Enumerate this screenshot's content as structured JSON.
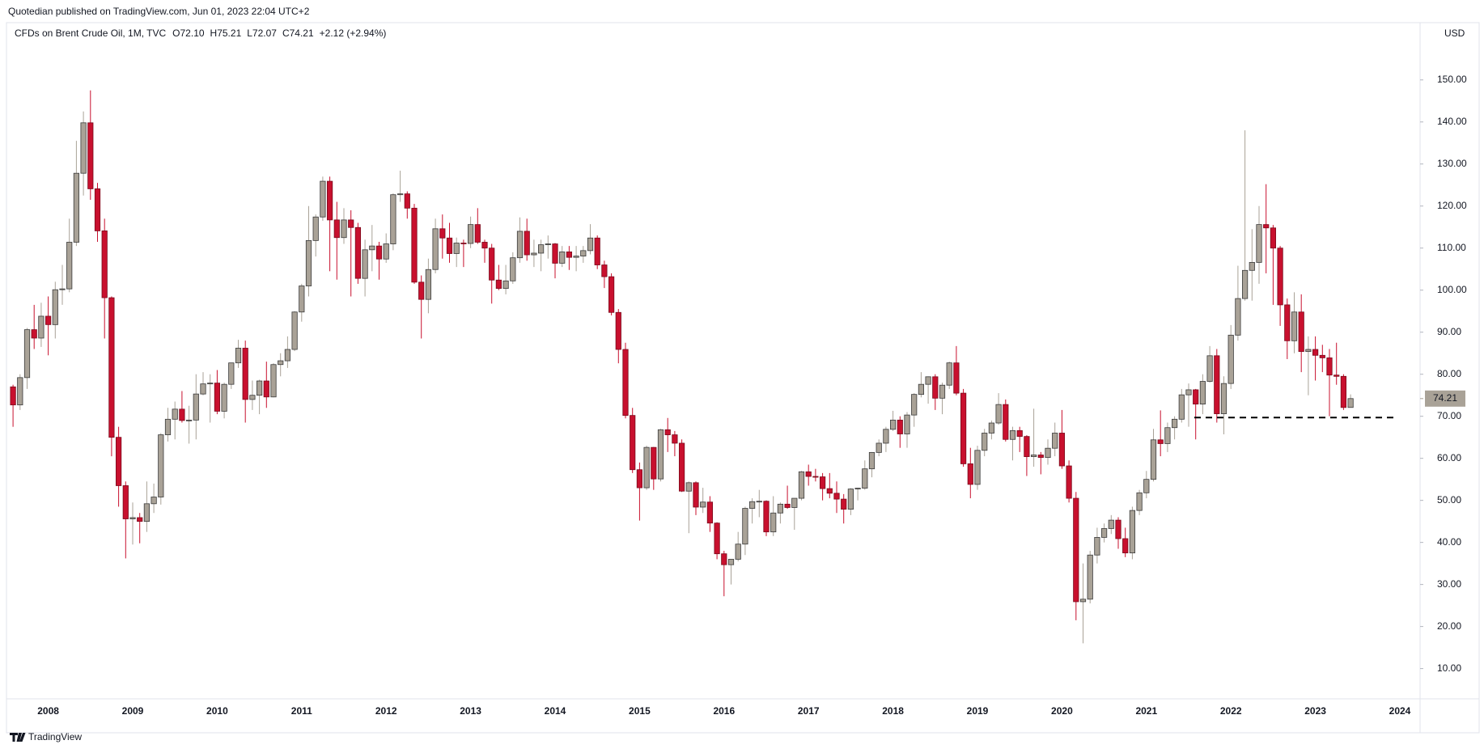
{
  "page": {
    "published": "Quotedian published on TradingView.com, Jun 01, 2023 22:04 UTC+2",
    "brand": "TradingView"
  },
  "chart_data": {
    "type": "candlestick",
    "title": "CFDs on Brent Crude Oil, 1M, TVC",
    "header_open": "O72.10",
    "header_high": "H75.21",
    "header_low": "L72.07",
    "header_close": "C74.21",
    "header_change": "+2.12 (+2.94%)",
    "currency": "USD",
    "up_color": "#a9a297",
    "down_color": "#c8102e",
    "last_price": 74.21,
    "level": 69.7,
    "ylim": [
      3,
      159
    ],
    "yticks": [
      {
        "value": 10,
        "label": "10.00"
      },
      {
        "value": 20,
        "label": "20.00"
      },
      {
        "value": 30,
        "label": "30.00"
      },
      {
        "value": 40,
        "label": "40.00"
      },
      {
        "value": 50,
        "label": "50.00"
      },
      {
        "value": 60,
        "label": "60.00"
      },
      {
        "value": 70,
        "label": "70.00"
      },
      {
        "value": 80,
        "label": "80.00"
      },
      {
        "value": 90,
        "label": "90.00"
      },
      {
        "value": 100,
        "label": "100.00"
      },
      {
        "value": 110,
        "label": "110.00"
      },
      {
        "value": 120,
        "label": "120.00"
      },
      {
        "value": 130,
        "label": "130.00"
      },
      {
        "value": 140,
        "label": "140.00"
      },
      {
        "value": 150,
        "label": "150.00"
      }
    ],
    "categories": [
      null,
      null,
      null,
      null,
      null,
      "2008",
      null,
      null,
      null,
      null,
      null,
      null,
      null,
      null,
      null,
      null,
      null,
      "2009",
      null,
      null,
      null,
      null,
      null,
      null,
      null,
      null,
      null,
      null,
      null,
      "2010",
      null,
      null,
      null,
      null,
      null,
      null,
      null,
      null,
      null,
      null,
      null,
      "2011",
      null,
      null,
      null,
      null,
      null,
      null,
      null,
      null,
      null,
      null,
      null,
      "2012",
      null,
      null,
      null,
      null,
      null,
      null,
      null,
      null,
      null,
      null,
      null,
      "2013",
      null,
      null,
      null,
      null,
      null,
      null,
      null,
      null,
      null,
      null,
      null,
      "2014",
      null,
      null,
      null,
      null,
      null,
      null,
      null,
      null,
      null,
      null,
      null,
      "2015",
      null,
      null,
      null,
      null,
      null,
      null,
      null,
      null,
      null,
      null,
      null,
      "2016",
      null,
      null,
      null,
      null,
      null,
      null,
      null,
      null,
      null,
      null,
      null,
      "2017",
      null,
      null,
      null,
      null,
      null,
      null,
      null,
      null,
      null,
      null,
      null,
      "2018",
      null,
      null,
      null,
      null,
      null,
      null,
      null,
      null,
      null,
      null,
      null,
      "2019",
      null,
      null,
      null,
      null,
      null,
      null,
      null,
      null,
      null,
      null,
      null,
      "2020",
      null,
      null,
      null,
      null,
      null,
      null,
      null,
      null,
      null,
      null,
      null,
      "2021",
      null,
      null,
      null,
      null,
      null,
      null,
      null,
      null,
      null,
      null,
      null,
      "2022",
      null,
      null,
      null,
      null,
      null,
      null,
      null,
      null,
      null,
      null,
      null,
      "2023",
      null,
      null,
      null,
      null,
      null,
      null,
      null,
      null,
      null,
      null,
      null,
      "2024"
    ],
    "ohlc": [
      [
        77.0,
        77.5,
        67.5,
        72.7
      ],
      [
        72.7,
        80.0,
        71.5,
        79.2
      ],
      [
        79.2,
        91.0,
        76.5,
        90.6
      ],
      [
        90.6,
        96.5,
        86.0,
        88.6
      ],
      [
        88.6,
        97.0,
        86.5,
        93.8
      ],
      [
        93.8,
        98.5,
        84.5,
        91.8
      ],
      [
        91.8,
        102.0,
        88.5,
        100.1
      ],
      [
        100.1,
        106.0,
        96.5,
        100.3
      ],
      [
        100.3,
        117.0,
        99.5,
        111.4
      ],
      [
        111.4,
        135.5,
        110.5,
        127.8
      ],
      [
        127.8,
        142.5,
        122.5,
        139.8
      ],
      [
        139.8,
        147.5,
        121.5,
        124.1
      ],
      [
        124.1,
        125.5,
        111.5,
        114.1
      ],
      [
        114.1,
        117.0,
        88.5,
        98.2
      ],
      [
        98.2,
        98.5,
        60.5,
        65.0
      ],
      [
        65.0,
        67.5,
        48.5,
        53.5
      ],
      [
        53.5,
        54.5,
        36.2,
        45.6
      ],
      [
        45.6,
        49.5,
        39.5,
        45.9
      ],
      [
        45.9,
        47.0,
        39.8,
        45.0
      ],
      [
        45.0,
        54.5,
        42.5,
        49.2
      ],
      [
        49.2,
        54.0,
        47.0,
        50.8
      ],
      [
        50.8,
        66.0,
        49.0,
        65.6
      ],
      [
        65.6,
        72.0,
        64.0,
        69.3
      ],
      [
        69.3,
        73.5,
        64.5,
        71.7
      ],
      [
        71.7,
        76.0,
        68.5,
        69.0
      ],
      [
        69.0,
        72.5,
        63.5,
        69.1
      ],
      [
        69.1,
        80.0,
        64.5,
        75.3
      ],
      [
        75.3,
        80.5,
        75.0,
        77.7
      ],
      [
        77.7,
        80.0,
        68.5,
        77.9
      ],
      [
        77.9,
        81.0,
        70.5,
        71.2
      ],
      [
        71.2,
        78.0,
        69.5,
        77.6
      ],
      [
        77.6,
        82.7,
        76.5,
        82.7
      ],
      [
        82.7,
        88.2,
        81.5,
        86.2
      ],
      [
        86.2,
        88.0,
        68.5,
        74.0
      ],
      [
        74.0,
        78.5,
        71.5,
        75.0
      ],
      [
        75.0,
        78.7,
        70.5,
        78.4
      ],
      [
        78.4,
        83.0,
        72.0,
        74.6
      ],
      [
        74.6,
        82.6,
        74.5,
        82.3
      ],
      [
        82.3,
        85.0,
        79.5,
        83.2
      ],
      [
        83.2,
        89.0,
        81.5,
        85.9
      ],
      [
        85.9,
        95.0,
        85.5,
        94.8
      ],
      [
        94.8,
        101.5,
        92.5,
        101.0
      ],
      [
        101.0,
        120.0,
        98.5,
        111.8
      ],
      [
        111.8,
        118.0,
        108.0,
        117.4
      ],
      [
        117.4,
        127.0,
        116.5,
        125.9
      ],
      [
        125.9,
        127.0,
        104.5,
        116.7
      ],
      [
        116.7,
        121.0,
        102.5,
        112.5
      ],
      [
        112.5,
        119.5,
        111.0,
        116.7
      ],
      [
        116.7,
        119.0,
        98.5,
        114.9
      ],
      [
        114.9,
        116.0,
        101.5,
        102.8
      ],
      [
        102.8,
        112.0,
        98.5,
        109.6
      ],
      [
        109.6,
        115.5,
        104.5,
        110.5
      ],
      [
        110.5,
        111.5,
        102.5,
        107.4
      ],
      [
        107.4,
        113.5,
        106.5,
        111.0
      ],
      [
        111.0,
        123.0,
        109.5,
        122.7
      ],
      [
        122.7,
        128.4,
        121.0,
        122.9
      ],
      [
        122.9,
        123.5,
        117.0,
        119.5
      ],
      [
        119.5,
        120.5,
        101.5,
        101.9
      ],
      [
        101.9,
        103.5,
        88.5,
        97.8
      ],
      [
        97.8,
        107.5,
        94.5,
        104.9
      ],
      [
        104.9,
        117.0,
        104.0,
        114.6
      ],
      [
        114.6,
        118.0,
        107.5,
        112.4
      ],
      [
        112.4,
        116.0,
        106.5,
        108.7
      ],
      [
        108.7,
        112.5,
        105.5,
        111.2
      ],
      [
        111.2,
        112.0,
        105.5,
        111.1
      ],
      [
        111.1,
        117.5,
        110.0,
        115.6
      ],
      [
        115.6,
        119.5,
        111.0,
        111.4
      ],
      [
        111.4,
        112.0,
        106.5,
        110.0
      ],
      [
        110.0,
        111.0,
        96.8,
        102.4
      ],
      [
        102.4,
        106.0,
        100.0,
        100.4
      ],
      [
        100.4,
        106.0,
        99.0,
        102.2
      ],
      [
        102.2,
        109.0,
        101.5,
        107.7
      ],
      [
        107.7,
        117.3,
        106.5,
        114.0
      ],
      [
        114.0,
        117.0,
        107.0,
        108.4
      ],
      [
        108.4,
        112.0,
        105.5,
        108.8
      ],
      [
        108.8,
        112.0,
        104.5,
        110.8
      ],
      [
        110.8,
        113.0,
        107.5,
        111.0
      ],
      [
        111.0,
        111.2,
        102.8,
        106.4
      ],
      [
        106.4,
        110.5,
        105.5,
        109.1
      ],
      [
        109.1,
        110.5,
        104.8,
        107.8
      ],
      [
        107.8,
        110.5,
        104.5,
        108.1
      ],
      [
        108.1,
        110.5,
        106.5,
        109.4
      ],
      [
        109.4,
        115.7,
        108.5,
        112.4
      ],
      [
        112.4,
        113.0,
        105.0,
        106.0
      ],
      [
        106.0,
        107.0,
        100.5,
        103.2
      ],
      [
        103.2,
        104.0,
        94.0,
        94.7
      ],
      [
        94.7,
        95.5,
        82.6,
        85.9
      ],
      [
        85.9,
        87.5,
        69.5,
        70.2
      ],
      [
        70.2,
        72.0,
        56.5,
        57.3
      ],
      [
        57.3,
        59.0,
        45.2,
        53.0
      ],
      [
        53.0,
        63.0,
        52.5,
        62.6
      ],
      [
        62.6,
        62.7,
        52.5,
        55.1
      ],
      [
        55.1,
        67.0,
        54.5,
        66.8
      ],
      [
        66.8,
        69.6,
        61.5,
        65.6
      ],
      [
        65.6,
        66.5,
        60.5,
        63.6
      ],
      [
        63.6,
        64.5,
        52.0,
        52.2
      ],
      [
        52.2,
        54.5,
        42.2,
        54.2
      ],
      [
        54.2,
        54.5,
        46.5,
        48.4
      ],
      [
        48.4,
        53.0,
        47.0,
        49.6
      ],
      [
        49.6,
        51.0,
        42.5,
        44.6
      ],
      [
        44.6,
        44.8,
        36.0,
        37.3
      ],
      [
        37.3,
        38.0,
        27.2,
        34.7
      ],
      [
        34.7,
        36.0,
        30.0,
        36.0
      ],
      [
        36.0,
        42.5,
        35.5,
        39.6
      ],
      [
        39.6,
        48.5,
        37.0,
        48.1
      ],
      [
        48.1,
        50.5,
        44.5,
        49.7
      ],
      [
        49.7,
        52.5,
        46.0,
        49.8
      ],
      [
        49.8,
        50.0,
        41.5,
        42.5
      ],
      [
        42.5,
        51.0,
        41.5,
        47.0
      ],
      [
        47.0,
        49.5,
        44.5,
        49.1
      ],
      [
        49.1,
        53.5,
        48.0,
        48.3
      ],
      [
        48.3,
        50.5,
        43.0,
        50.5
      ],
      [
        50.5,
        57.0,
        50.0,
        56.8
      ],
      [
        56.8,
        58.5,
        53.5,
        55.7
      ],
      [
        55.7,
        57.5,
        54.5,
        55.6
      ],
      [
        55.6,
        56.5,
        50.0,
        52.8
      ],
      [
        52.8,
        56.5,
        50.5,
        51.7
      ],
      [
        51.7,
        54.5,
        47.0,
        50.3
      ],
      [
        50.3,
        51.5,
        44.5,
        47.9
      ],
      [
        47.9,
        52.9,
        46.5,
        52.7
      ],
      [
        52.7,
        53.0,
        50.0,
        52.9
      ],
      [
        52.9,
        59.5,
        52.5,
        57.5
      ],
      [
        57.5,
        61.5,
        55.5,
        61.4
      ],
      [
        61.4,
        64.5,
        60.5,
        63.6
      ],
      [
        63.6,
        67.5,
        61.5,
        66.9
      ],
      [
        66.9,
        71.3,
        66.5,
        69.1
      ],
      [
        69.1,
        70.0,
        62.5,
        65.8
      ],
      [
        65.8,
        71.0,
        62.5,
        70.3
      ],
      [
        70.3,
        75.5,
        67.5,
        75.2
      ],
      [
        75.2,
        80.5,
        74.5,
        77.6
      ],
      [
        77.6,
        79.5,
        73.0,
        79.4
      ],
      [
        79.4,
        80.0,
        71.5,
        74.3
      ],
      [
        74.3,
        78.0,
        70.5,
        77.4
      ],
      [
        77.4,
        83.0,
        76.5,
        82.7
      ],
      [
        82.7,
        86.7,
        75.0,
        75.5
      ],
      [
        75.5,
        76.5,
        58.0,
        58.7
      ],
      [
        58.7,
        62.5,
        50.5,
        53.8
      ],
      [
        53.8,
        63.0,
        52.5,
        61.9
      ],
      [
        61.9,
        67.0,
        60.5,
        66.0
      ],
      [
        66.0,
        69.0,
        64.5,
        68.4
      ],
      [
        68.4,
        75.5,
        68.0,
        72.8
      ],
      [
        72.8,
        74.0,
        64.0,
        64.5
      ],
      [
        64.5,
        67.5,
        59.5,
        66.6
      ],
      [
        66.6,
        67.5,
        61.5,
        65.2
      ],
      [
        65.2,
        65.5,
        55.8,
        60.4
      ],
      [
        60.4,
        71.8,
        58.0,
        60.8
      ],
      [
        60.8,
        61.5,
        56.2,
        60.2
      ],
      [
        60.2,
        64.5,
        58.5,
        62.4
      ],
      [
        62.4,
        68.5,
        60.5,
        66.0
      ],
      [
        66.0,
        71.5,
        57.5,
        58.2
      ],
      [
        58.2,
        59.5,
        49.5,
        50.5
      ],
      [
        50.5,
        52.0,
        21.5,
        25.9
      ],
      [
        25.9,
        35.0,
        16.0,
        26.5
      ],
      [
        26.5,
        38.0,
        25.5,
        37.0
      ],
      [
        37.0,
        43.5,
        35.0,
        41.2
      ],
      [
        41.2,
        44.5,
        40.0,
        43.3
      ],
      [
        43.3,
        46.5,
        42.0,
        45.3
      ],
      [
        45.3,
        46.0,
        38.5,
        40.9
      ],
      [
        40.9,
        43.5,
        36.5,
        37.5
      ],
      [
        37.5,
        48.5,
        36.0,
        47.6
      ],
      [
        47.6,
        52.5,
        46.5,
        51.8
      ],
      [
        51.8,
        57.0,
        50.5,
        55.0
      ],
      [
        55.0,
        67.0,
        54.5,
        64.4
      ],
      [
        64.4,
        71.4,
        60.5,
        63.5
      ],
      [
        63.5,
        68.5,
        61.5,
        67.3
      ],
      [
        67.3,
        70.0,
        64.5,
        69.3
      ],
      [
        69.3,
        76.5,
        68.5,
        75.1
      ],
      [
        75.1,
        77.8,
        67.5,
        76.3
      ],
      [
        76.3,
        76.5,
        64.5,
        72.9
      ],
      [
        72.9,
        80.0,
        70.5,
        78.3
      ],
      [
        78.3,
        86.7,
        78.0,
        84.4
      ],
      [
        84.4,
        86.0,
        68.5,
        70.6
      ],
      [
        70.6,
        79.5,
        65.7,
        77.8
      ],
      [
        77.8,
        91.7,
        76.5,
        89.3
      ],
      [
        89.3,
        105.8,
        88.0,
        98.0
      ],
      [
        98.0,
        138.0,
        97.5,
        104.7
      ],
      [
        104.7,
        114.5,
        97.5,
        106.6
      ],
      [
        106.6,
        120.0,
        101.5,
        115.6
      ],
      [
        115.6,
        125.2,
        104.0,
        114.8
      ],
      [
        114.8,
        115.5,
        96.5,
        110.0
      ],
      [
        110.0,
        110.5,
        91.5,
        96.5
      ],
      [
        96.5,
        98.0,
        83.6,
        87.96
      ],
      [
        87.96,
        99.5,
        85.0,
        94.8
      ],
      [
        94.8,
        99.0,
        80.5,
        85.4
      ],
      [
        85.4,
        89.0,
        75.0,
        85.9
      ],
      [
        85.9,
        89.0,
        78.5,
        84.5
      ],
      [
        84.5,
        87.0,
        80.5,
        83.9
      ],
      [
        83.9,
        86.0,
        70.0,
        79.8
      ],
      [
        79.8,
        87.5,
        77.5,
        79.5
      ],
      [
        79.5,
        80.0,
        71.5,
        72.09
      ],
      [
        72.1,
        75.21,
        72.07,
        74.21
      ],
      null,
      null,
      null,
      null,
      null,
      null,
      null
    ]
  }
}
